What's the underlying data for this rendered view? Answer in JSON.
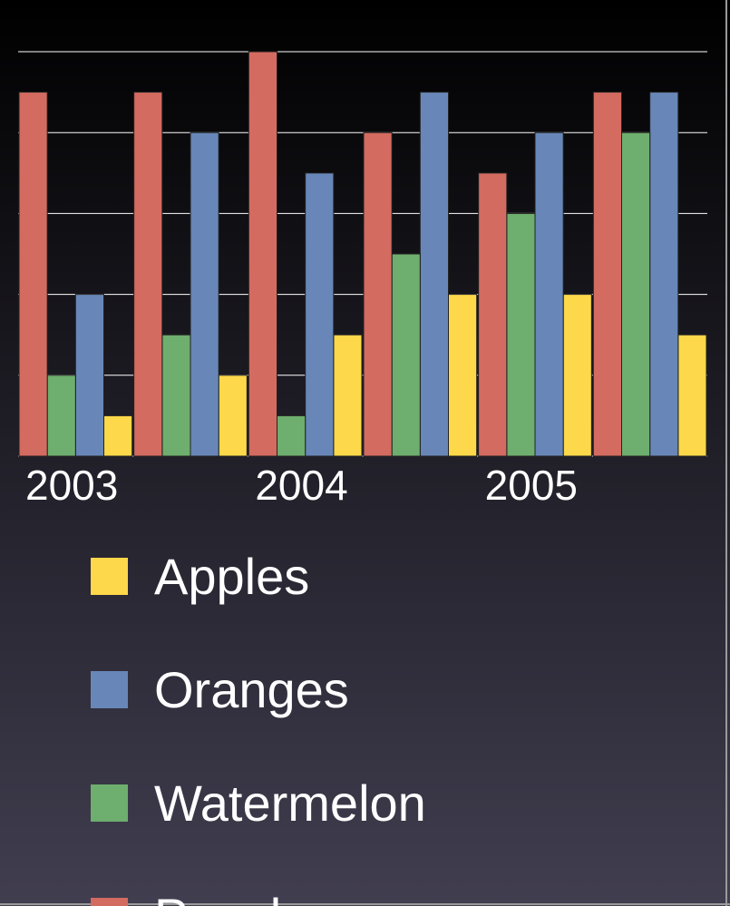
{
  "chart_data": {
    "type": "bar",
    "categories": [
      "2003",
      null,
      "2004",
      null,
      "2005",
      null
    ],
    "series": [
      {
        "name": "Apples",
        "color": "#fdd84a",
        "values": [
          1,
          2,
          3,
          4,
          4,
          3
        ]
      },
      {
        "name": "Oranges",
        "color": "#6887b8",
        "values": [
          4,
          8,
          7,
          9,
          8,
          9
        ]
      },
      {
        "name": "Watermelon",
        "color": "#6eae6e",
        "values": [
          2,
          3,
          1,
          5,
          6,
          8
        ]
      },
      {
        "name": "Peaches",
        "color": "#d46b60",
        "values": [
          9,
          9,
          10,
          8,
          7,
          9
        ]
      }
    ],
    "ylim": [
      0,
      10
    ],
    "yticks": [
      0,
      2,
      4,
      6,
      8,
      10
    ],
    "grid": true,
    "ytick_labels": false,
    "legend": "bottom"
  }
}
